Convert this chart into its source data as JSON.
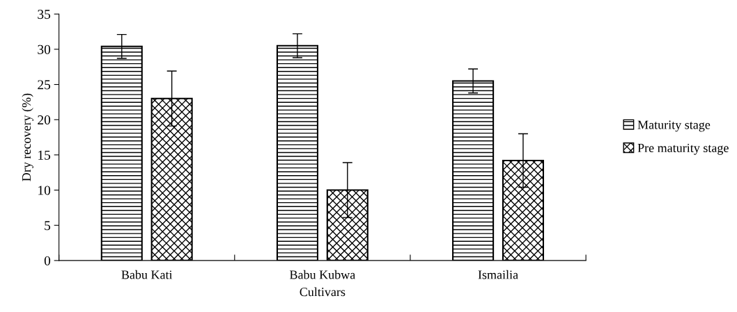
{
  "chart_data": {
    "type": "bar",
    "xlabel": "Cultivars",
    "ylabel": "Dry recovery (%)",
    "categories": [
      "Babu Kati",
      "Babu Kubwa",
      "Ismailia"
    ],
    "series": [
      {
        "name": "Maturity stage",
        "color": "#000000",
        "values": [
          30.4,
          30.5,
          25.5
        ],
        "errors": [
          1.7,
          1.7,
          1.7
        ]
      },
      {
        "name": "Pre maturity stage",
        "color": "#000000",
        "values": [
          23.0,
          10.0,
          14.2
        ],
        "errors": [
          3.9,
          3.9,
          3.8
        ]
      }
    ],
    "ylim": [
      0,
      35
    ],
    "yticks": [
      0,
      5,
      10,
      15,
      20,
      25,
      30,
      35
    ],
    "grid": false,
    "legend": "right"
  }
}
